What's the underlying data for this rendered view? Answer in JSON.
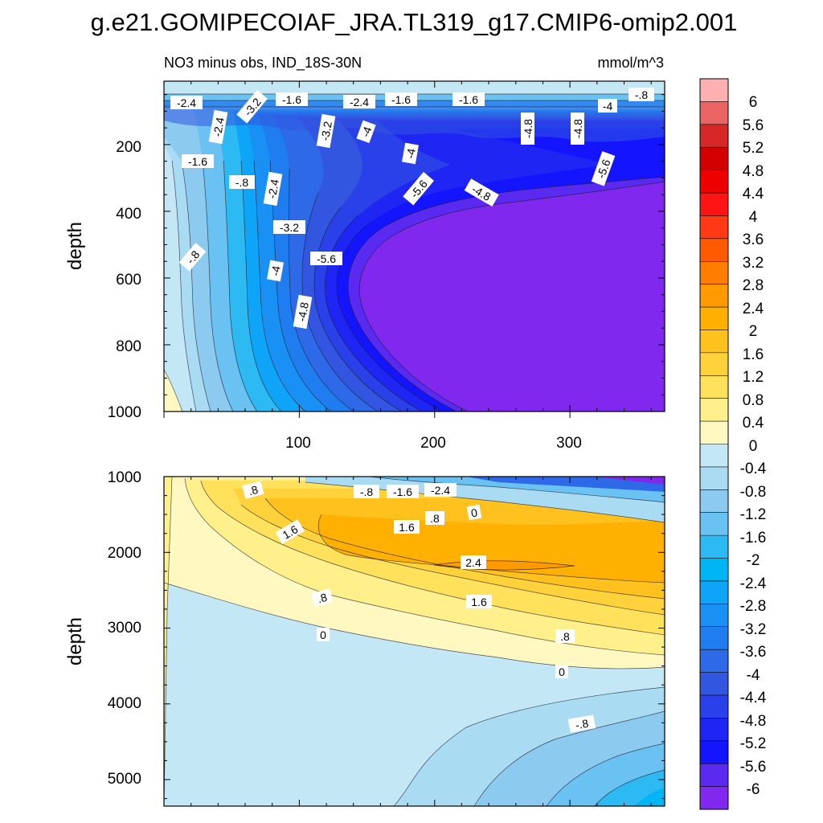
{
  "chart_data": {
    "type": "heatmap",
    "title": "g.e21.GOMIPECOIAF_JRA.TL319_g17.CMIP6-omip2.001",
    "subtitle_left": "NO3 minus obs, IND_18S-30N",
    "units": "mmol/m^3",
    "colorbar": {
      "ticks": [
        "6",
        "5.6",
        "5.2",
        "4.8",
        "4.4",
        "4",
        "3.6",
        "3.2",
        "2.8",
        "2.4",
        "2",
        "1.6",
        "1.2",
        "0.8",
        "0.4",
        "0",
        "-0.4",
        "-0.8",
        "-1.2",
        "-1.6",
        "-2",
        "-2.4",
        "-2.8",
        "-3.2",
        "-3.6",
        "-4",
        "-4.4",
        "-4.8",
        "-5.2",
        "-5.6",
        "-6"
      ],
      "colors": [
        "#fcb0b0",
        "#ea6464",
        "#d72828",
        "#d20000",
        "#ec0000",
        "#ff1414",
        "#ff3a14",
        "#ff5a00",
        "#ff7d00",
        "#ff9a00",
        "#ffb000",
        "#ffc11e",
        "#ffd23c",
        "#ffe15c",
        "#fff08c",
        "#fff8c0",
        "#c4e7f6",
        "#a9dbf3",
        "#8ccbef",
        "#6ac2f2",
        "#2dbaf2",
        "#00b5f3",
        "#0ea4f8",
        "#1890f4",
        "#1f7df0",
        "#2e6ae8",
        "#3256e0",
        "#2a40e8",
        "#1f26f4",
        "#1414ff",
        "#5a2af0",
        "#8028ee"
      ]
    },
    "panels": [
      {
        "name": "upper",
        "xlabel": "",
        "ylabel": "depth",
        "xlim": [
          0,
          370
        ],
        "ylim": [
          1000,
          10
        ],
        "xticks": [
          "100",
          "200",
          "300"
        ],
        "yticks": [
          "200",
          "400",
          "600",
          "800",
          "1000"
        ],
        "contour_labels": [
          "-2.4",
          "-3.2",
          "-1.6",
          "-2.4",
          "-1.6",
          "-1.6",
          "-4",
          "-.8",
          "-2.4",
          "-3.2",
          "-4",
          "-4.8",
          "-4.8",
          "-1.6",
          "-4",
          "-.8",
          "-2.4",
          "-5.6",
          "-4.8",
          "-5.6",
          "-3.2",
          "-.8",
          "-5.6",
          "-4",
          "-4.8"
        ]
      },
      {
        "name": "lower",
        "xlabel": "",
        "ylabel": "depth",
        "xlim": [
          0,
          370
        ],
        "ylim": [
          5350,
          1000
        ],
        "xticks": [],
        "yticks": [
          "1000",
          "2000",
          "3000",
          "4000",
          "5000"
        ],
        "contour_labels": [
          ".8",
          "-.8",
          "-1.6",
          "-2.4",
          ".8",
          "0",
          "1.6",
          "1.6",
          "2.4",
          ".8",
          "1.6",
          "0",
          ".8",
          "0",
          "-.8"
        ]
      }
    ]
  }
}
